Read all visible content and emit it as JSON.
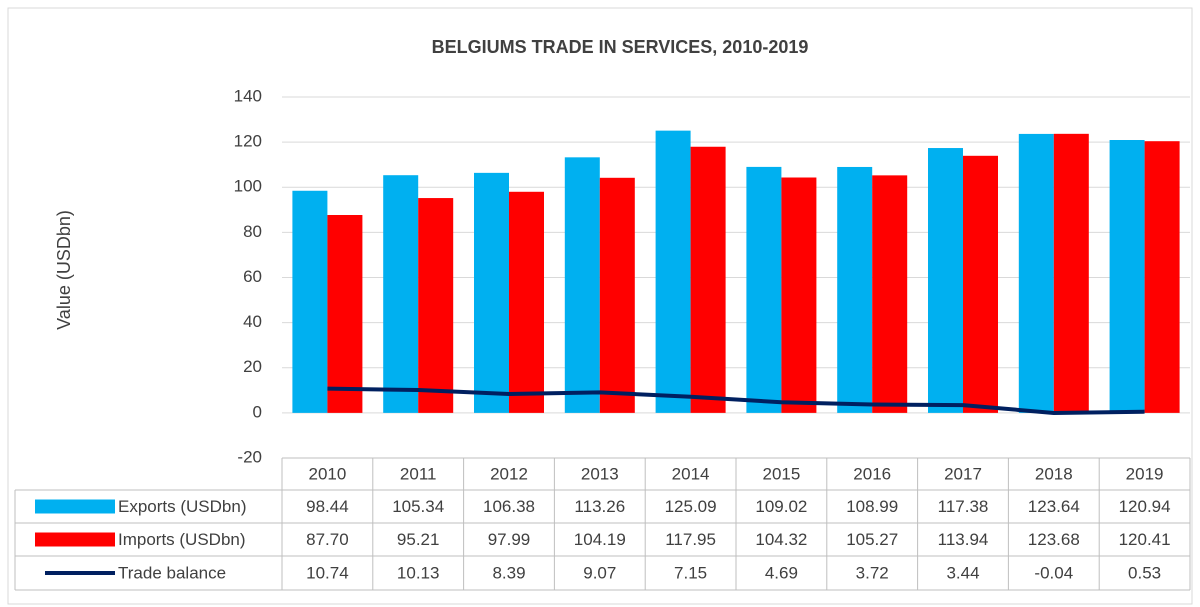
{
  "chart_data": {
    "type": "bar",
    "title": "BELGIUMS TRADE IN SERVICES, 2010-2019",
    "y_label": "Value (USDbn)",
    "categories": [
      "2010",
      "2011",
      "2012",
      "2013",
      "2014",
      "2015",
      "2016",
      "2017",
      "2018",
      "2019"
    ],
    "series": [
      {
        "name": "Exports (USDbn)",
        "color": "#00b0f0",
        "type": "bar",
        "values": [
          98.44,
          105.34,
          106.38,
          113.26,
          125.09,
          109.02,
          108.99,
          117.38,
          123.64,
          120.94
        ],
        "value_labels": [
          "98.44",
          "105.34",
          "106.38",
          "113.26",
          "125.09",
          "109.02",
          "108.99",
          "117.38",
          "123.64",
          "120.94"
        ]
      },
      {
        "name": "Imports (USDbn)",
        "color": "#ff0000",
        "type": "bar",
        "values": [
          87.7,
          95.21,
          97.99,
          104.19,
          117.95,
          104.32,
          105.27,
          113.94,
          123.68,
          120.41
        ],
        "value_labels": [
          "87.70",
          "95.21",
          "97.99",
          "104.19",
          "117.95",
          "104.32",
          "105.27",
          "113.94",
          "123.68",
          "120.41"
        ]
      },
      {
        "name": "Trade balance",
        "color": "#002060",
        "type": "line",
        "values": [
          10.74,
          10.13,
          8.39,
          9.07,
          7.15,
          4.69,
          3.72,
          3.44,
          -0.04,
          0.53
        ],
        "value_labels": [
          "10.74",
          "10.13",
          "8.39",
          "9.07",
          "7.15",
          "4.69",
          "3.72",
          "3.44",
          "-0.04",
          "0.53"
        ]
      }
    ],
    "ylim": [
      -20,
      140
    ],
    "yticks": [
      -20,
      0,
      20,
      40,
      60,
      80,
      100,
      120,
      140
    ],
    "grid": true
  }
}
